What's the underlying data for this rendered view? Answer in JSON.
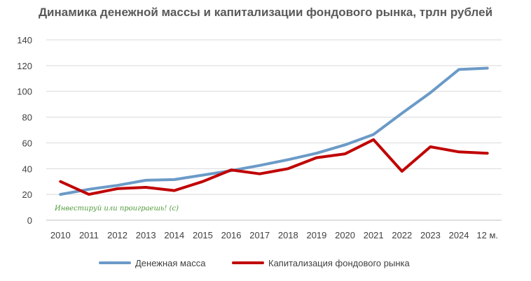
{
  "chart_data": {
    "type": "line",
    "title": "Динамика денежной массы и капитализации фондового рынка,  трлн рублей",
    "categories": [
      "2010",
      "2011",
      "2012",
      "2013",
      "2014",
      "2015",
      "2016",
      "2017",
      "2018",
      "2019",
      "2020",
      "2021",
      "2022",
      "2023",
      "2024",
      "12 м."
    ],
    "series": [
      {
        "name": "Денежная масса",
        "color": "#6b9ac7",
        "values": [
          20,
          24,
          27,
          31,
          31.5,
          35,
          38.5,
          42.5,
          47,
          52,
          58.5,
          66.5,
          83,
          99,
          117,
          118
        ]
      },
      {
        "name": "Капитализация фондового рынка",
        "color": "#c00000",
        "values": [
          30,
          20,
          24.5,
          25.5,
          23,
          30,
          39,
          36,
          40,
          48.5,
          51.5,
          62.5,
          38,
          57,
          53,
          52
        ]
      }
    ],
    "yticks": [
      0,
      20,
      40,
      60,
      80,
      100,
      120,
      140
    ],
    "ylim": [
      0,
      140
    ],
    "grid": true,
    "legend": "bottom",
    "annotation": "Инвестируй или проиграешь! (с)"
  }
}
